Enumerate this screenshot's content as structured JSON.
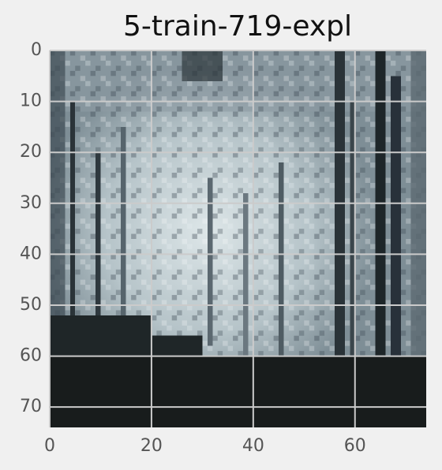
{
  "chart_data": {
    "type": "image",
    "title": "5-train-719-expl",
    "xlim": [
      0,
      74
    ],
    "ylim": [
      0,
      74
    ],
    "xticks": [
      0,
      20,
      40,
      60
    ],
    "yticks": [
      0,
      10,
      20,
      30,
      40,
      50,
      60,
      70
    ],
    "grid": true,
    "grid_color": "#cbcbcb",
    "inverted_y": true
  }
}
